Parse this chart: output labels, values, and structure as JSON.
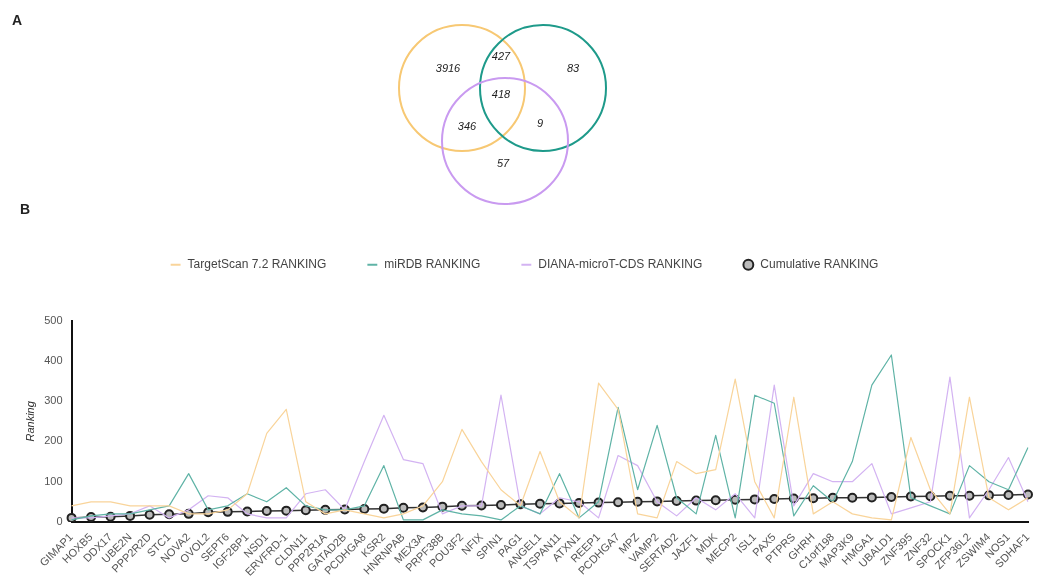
{
  "chart_data": [
    {
      "type": "other",
      "title": "A",
      "annotations": [
        "3916",
        "427",
        "83",
        "418",
        "346",
        "9",
        "57"
      ]
    },
    {
      "type": "line",
      "title": "B",
      "ylabel": "Ranking",
      "ylim": [
        0,
        500
      ],
      "yticks": [
        0,
        100,
        200,
        300,
        400,
        500
      ],
      "grid": false,
      "legend": "top",
      "categories": [
        "GIMAP1",
        "HOXB5",
        "DDX17",
        "UBE2N",
        "PPP2R2D",
        "STC1",
        "NOVA2",
        "OVOL2",
        "SEPT6",
        "IGF2BP1",
        "NSD1",
        "ERVFRD-1",
        "CLDN11",
        "PPP2R1A",
        "GATAD2B",
        "PCDHGA8",
        "KSR2",
        "HNRNPAB",
        "MEX3A",
        "PRPF38B",
        "POU3F2",
        "NFIX",
        "SPIN1",
        "PAG1",
        "ANGEL1",
        "TSPAN11",
        "ATXN1",
        "REEP1",
        "PCDHGA7",
        "MPZ",
        "VAMP2",
        "SERTAD2",
        "JAZF1",
        "MDK",
        "MECP2",
        "ISL1",
        "PAX5",
        "PTPRS",
        "GHRH",
        "C1orf198",
        "MAP3K9",
        "HMGA1",
        "UBALD1",
        "ZNF395",
        "ZNF32",
        "SPOCK1",
        "ZFP36L2",
        "ZSWIM4",
        "NOS1",
        "SDHAF1"
      ],
      "series": [
        {
          "name": "TargetScan 7.2 RANKING",
          "color": "#f9d49a",
          "marker": "none",
          "values": [
            40,
            50,
            50,
            40,
            40,
            40,
            20,
            20,
            30,
            70,
            220,
            280,
            50,
            20,
            30,
            20,
            10,
            20,
            40,
            100,
            230,
            150,
            80,
            40,
            175,
            50,
            10,
            345,
            280,
            20,
            10,
            150,
            120,
            130,
            355,
            100,
            10,
            310,
            20,
            50,
            20,
            10,
            5,
            210,
            80,
            20,
            310,
            60,
            30,
            60
          ]
        },
        {
          "name": "miRDB RANKING",
          "color": "#5fb3a6",
          "marker": "none",
          "values": [
            5,
            15,
            20,
            20,
            30,
            40,
            120,
            30,
            40,
            70,
            50,
            85,
            40,
            30,
            30,
            40,
            140,
            5,
            5,
            30,
            20,
            15,
            5,
            40,
            20,
            120,
            10,
            50,
            285,
            80,
            240,
            60,
            20,
            215,
            10,
            315,
            295,
            15,
            90,
            50,
            150,
            340,
            415,
            60,
            40,
            20,
            140,
            100,
            80,
            185
          ]
        },
        {
          "name": "DIANA-microT-CDS RANKING",
          "color": "#d3b3f2",
          "marker": "none",
          "values": [
            10,
            10,
            15,
            20,
            40,
            10,
            30,
            65,
            60,
            20,
            10,
            10,
            70,
            80,
            30,
            150,
            265,
            155,
            145,
            20,
            40,
            40,
            315,
            40,
            20,
            60,
            50,
            10,
            165,
            140,
            50,
            15,
            60,
            30,
            70,
            10,
            340,
            40,
            120,
            100,
            100,
            145,
            20,
            35,
            50,
            360,
            10,
            80,
            160,
            50
          ]
        },
        {
          "name": "Cumulative RANKING",
          "color": "#333333",
          "marker": "circle",
          "values": [
            10,
            12,
            13,
            15,
            18,
            19,
            20,
            24,
            25,
            26,
            27,
            28,
            29,
            30,
            31,
            32,
            33,
            35,
            36,
            38,
            40,
            41,
            42,
            44,
            45,
            46,
            47,
            48,
            49,
            50,
            51,
            52,
            53,
            54,
            55,
            56,
            57,
            58,
            59,
            60,
            60,
            61,
            62,
            63,
            64,
            65,
            65,
            66,
            67,
            68
          ]
        }
      ]
    }
  ]
}
